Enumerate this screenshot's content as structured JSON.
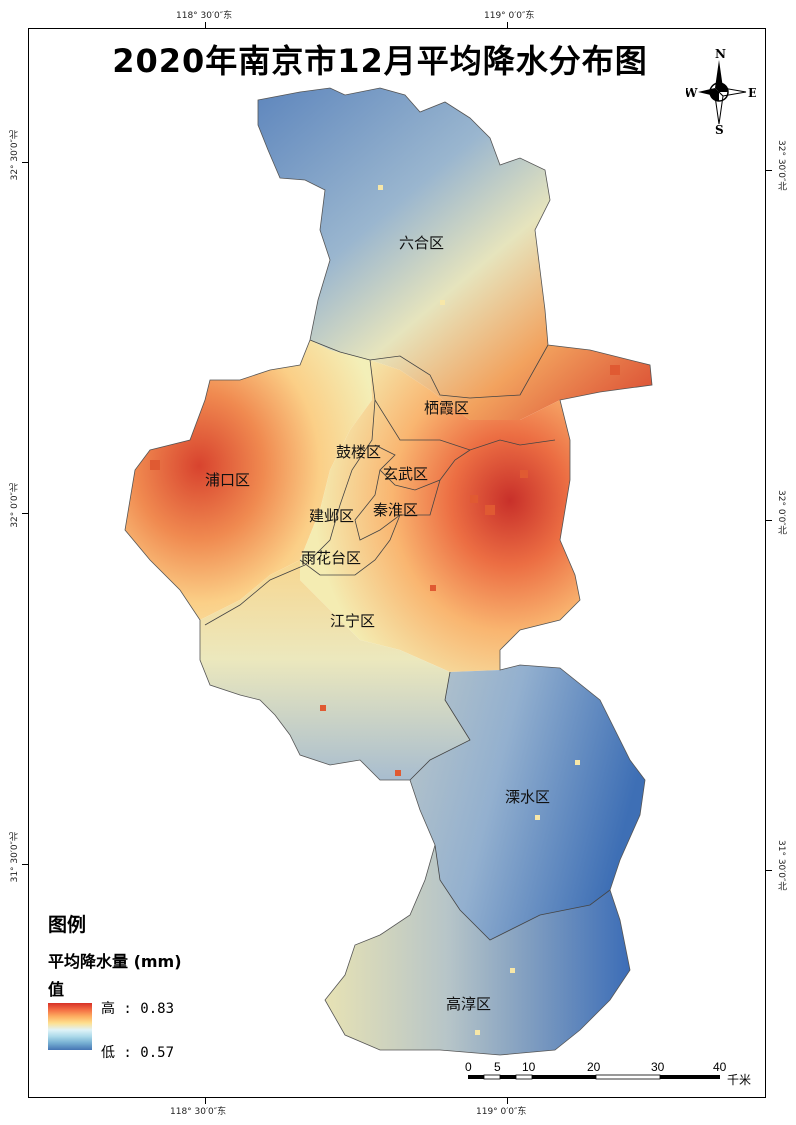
{
  "title": "2020年南京市12月平均降水分布图",
  "graticule": {
    "top_labels": [
      "118° 30′0″东",
      "119° 0′0″东"
    ],
    "bottom_labels": [
      "118° 30′0″东",
      "119° 0′0″东"
    ],
    "left_labels": [
      "32° 30′0″北",
      "32° 0′0″北",
      "31° 30′0″北"
    ],
    "right_labels": [
      "32° 30′0″北",
      "32° 0′0″北",
      "31° 30′0″北"
    ]
  },
  "districts": [
    "六合区",
    "栖霞区",
    "鼓楼区",
    "玄武区",
    "浦口区",
    "建邺区",
    "秦淮区",
    "雨花台区",
    "江宁区",
    "溧水区",
    "高淳区"
  ],
  "north_arrow": {
    "n": "N",
    "s": "S",
    "e": "E",
    "w": "W",
    "icon": "compass-rose-icon"
  },
  "legend": {
    "title": "图例",
    "field": "平均降水量 (mm)",
    "value_label": "值",
    "high": "高 : 0.83",
    "low": "低 : 0.57",
    "colors": [
      "#d73027",
      "#f46d43",
      "#fdae61",
      "#fee090",
      "#e0f3f8",
      "#abd9e9",
      "#74add1",
      "#4575b4"
    ]
  },
  "scale_bar": {
    "ticks": [
      "0",
      "5",
      "10",
      "20",
      "30",
      "40"
    ],
    "unit": "千米"
  }
}
